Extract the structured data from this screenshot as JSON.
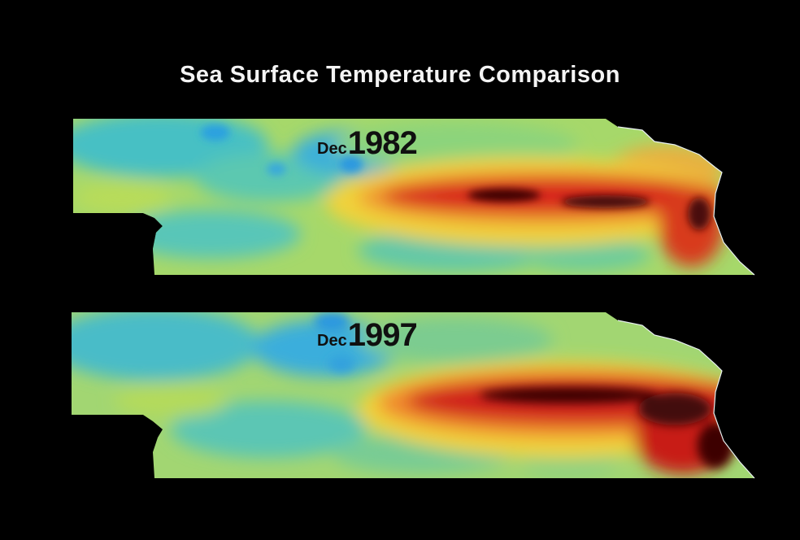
{
  "title": "Sea Surface Temperature Comparison",
  "panels": [
    {
      "month": "Dec",
      "year": "1982"
    },
    {
      "month": "Dec",
      "year": "1997"
    }
  ],
  "colors": {
    "background": "#000000",
    "cool": "#3cb8d8",
    "mild": "#9ad86a",
    "warm": "#f0d23a",
    "hot": "#d8281a",
    "hottest": "#3a0606"
  }
}
